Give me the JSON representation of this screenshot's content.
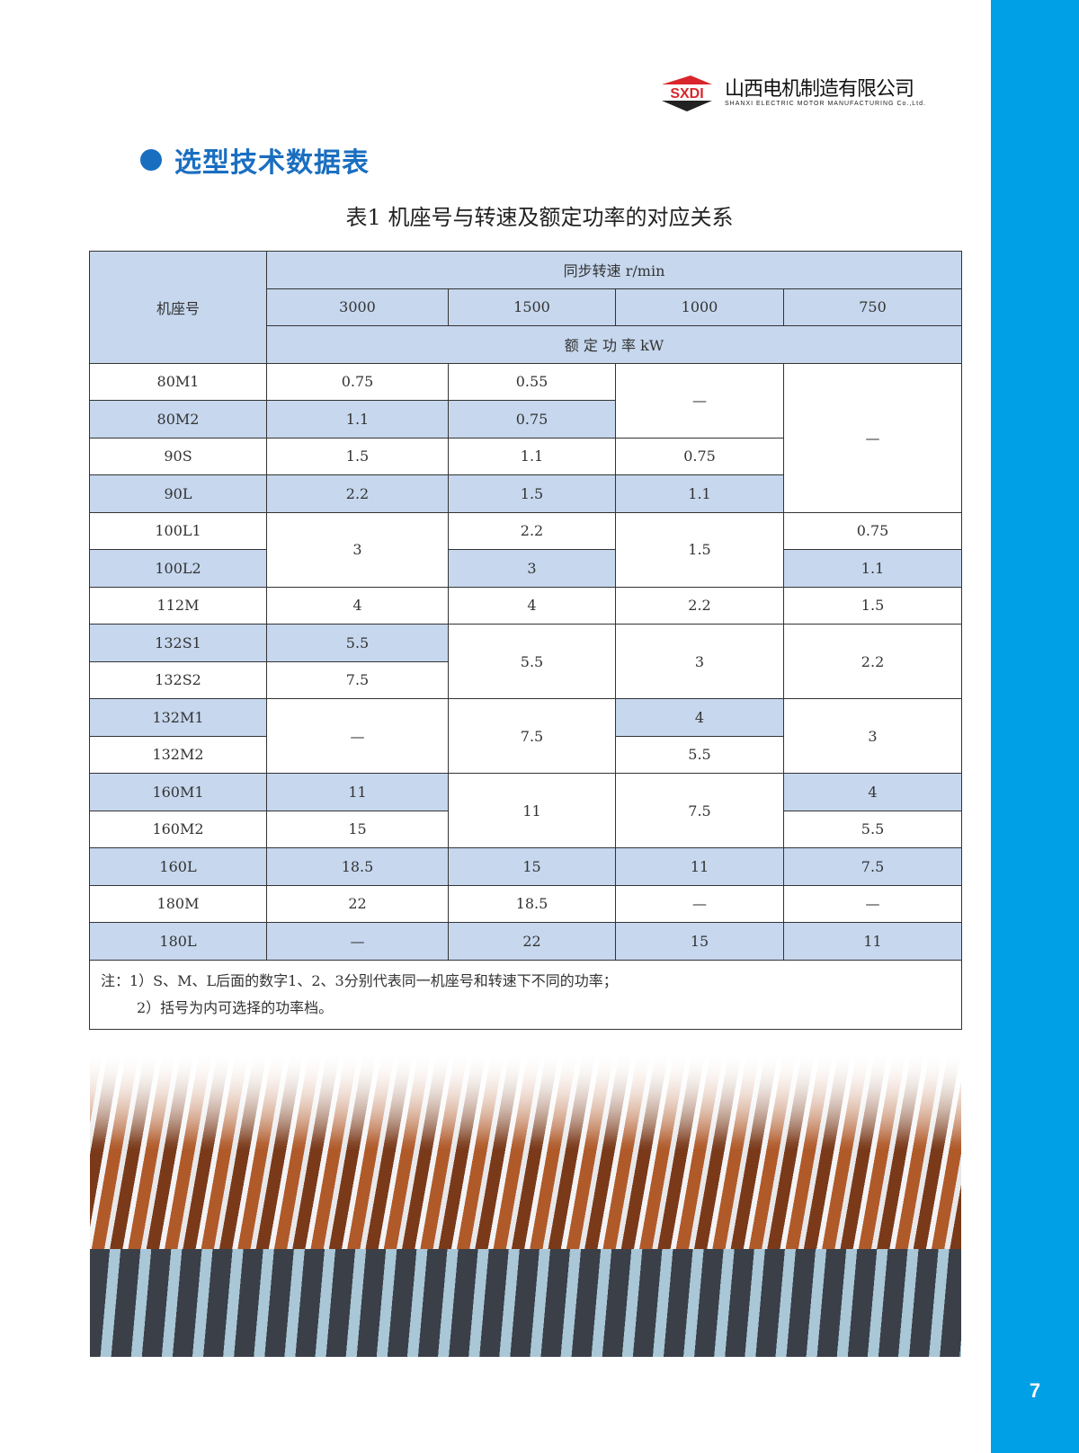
{
  "brand": {
    "logo_text": "SXDI",
    "company_cn": "山西电机制造有限公司",
    "company_en": "SHANXI ELECTRIC MOTOR MANUFACTURING Co.,Ltd.",
    "accent": "#00a0e6",
    "title_color": "#1a6ec0"
  },
  "section_title": "选型技术数据表",
  "table_caption": "表1 机座号与转速及额定功率的对应关系",
  "table": {
    "frame_header": "机座号",
    "speed_header": "同步转速 r/min",
    "speeds": [
      "3000",
      "1500",
      "1000",
      "750"
    ],
    "power_header": "额 定 功 率 kW",
    "rows": [
      {
        "frame": "80M1",
        "shaded": false,
        "cells": [
          {
            "v": "0.75"
          },
          {
            "v": "0.55"
          },
          {
            "v": "—",
            "rs": 2
          },
          {
            "v": "—",
            "rs": 4
          }
        ]
      },
      {
        "frame": "80M2",
        "shaded": true,
        "cells": [
          {
            "v": "1.1",
            "b": true
          },
          {
            "v": "0.75",
            "b": true
          }
        ]
      },
      {
        "frame": "90S",
        "shaded": false,
        "cells": [
          {
            "v": "1.5"
          },
          {
            "v": "1.1"
          },
          {
            "v": "0.75"
          }
        ]
      },
      {
        "frame": "90L",
        "shaded": true,
        "cells": [
          {
            "v": "2.2",
            "b": true
          },
          {
            "v": "1.5",
            "b": true
          },
          {
            "v": "1.1",
            "b": true
          }
        ]
      },
      {
        "frame": "100L1",
        "shaded": false,
        "cells": [
          {
            "v": "3",
            "rs": 2
          },
          {
            "v": "2.2"
          },
          {
            "v": "1.5",
            "rs": 2
          },
          {
            "v": "0.75"
          }
        ]
      },
      {
        "frame": "100L2",
        "shaded": true,
        "cells": [
          {
            "v": "3",
            "b": true
          },
          {
            "v": "1.1",
            "b": true
          }
        ]
      },
      {
        "frame": "112M",
        "shaded": false,
        "cells": [
          {
            "v": "4"
          },
          {
            "v": "4"
          },
          {
            "v": "2.2"
          },
          {
            "v": "1.5"
          }
        ]
      },
      {
        "frame": "132S1",
        "shaded": true,
        "cells": [
          {
            "v": "5.5",
            "b": true
          },
          {
            "v": "5.5",
            "rs": 2
          },
          {
            "v": "3",
            "rs": 2
          },
          {
            "v": "2.2",
            "rs": 2
          }
        ]
      },
      {
        "frame": "132S2",
        "shaded": false,
        "cells": [
          {
            "v": "7.5"
          }
        ]
      },
      {
        "frame": "132M1",
        "shaded": true,
        "cells": [
          {
            "v": "—",
            "rs": 2
          },
          {
            "v": "7.5",
            "rs": 2
          },
          {
            "v": "4",
            "b": true
          },
          {
            "v": "3",
            "rs": 2
          }
        ]
      },
      {
        "frame": "132M2",
        "shaded": false,
        "cells": [
          {
            "v": "5.5"
          }
        ]
      },
      {
        "frame": "160M1",
        "shaded": true,
        "cells": [
          {
            "v": "11",
            "b": true
          },
          {
            "v": "11",
            "rs": 2
          },
          {
            "v": "7.5",
            "rs": 2
          },
          {
            "v": "4",
            "b": true
          }
        ]
      },
      {
        "frame": "160M2",
        "shaded": false,
        "cells": [
          {
            "v": "15"
          },
          {
            "v": "5.5"
          }
        ]
      },
      {
        "frame": "160L",
        "shaded": true,
        "cells": [
          {
            "v": "18.5",
            "b": true
          },
          {
            "v": "15",
            "b": true
          },
          {
            "v": "11",
            "b": true
          },
          {
            "v": "7.5",
            "b": true
          }
        ]
      },
      {
        "frame": "180M",
        "shaded": false,
        "cells": [
          {
            "v": "22"
          },
          {
            "v": "18.5"
          },
          {
            "v": "—"
          },
          {
            "v": "—"
          }
        ]
      },
      {
        "frame": "180L",
        "shaded": true,
        "cells": [
          {
            "v": "—",
            "b": true
          },
          {
            "v": "22",
            "b": true
          },
          {
            "v": "15",
            "b": true
          },
          {
            "v": "11",
            "b": true
          }
        ]
      }
    ],
    "notes": [
      "注：1）S、M、L后面的数字1、2、3分别代表同一机座号和转速下不同的功率；",
      "2）括号为内可选择的功率档。"
    ]
  },
  "page_number": "7"
}
